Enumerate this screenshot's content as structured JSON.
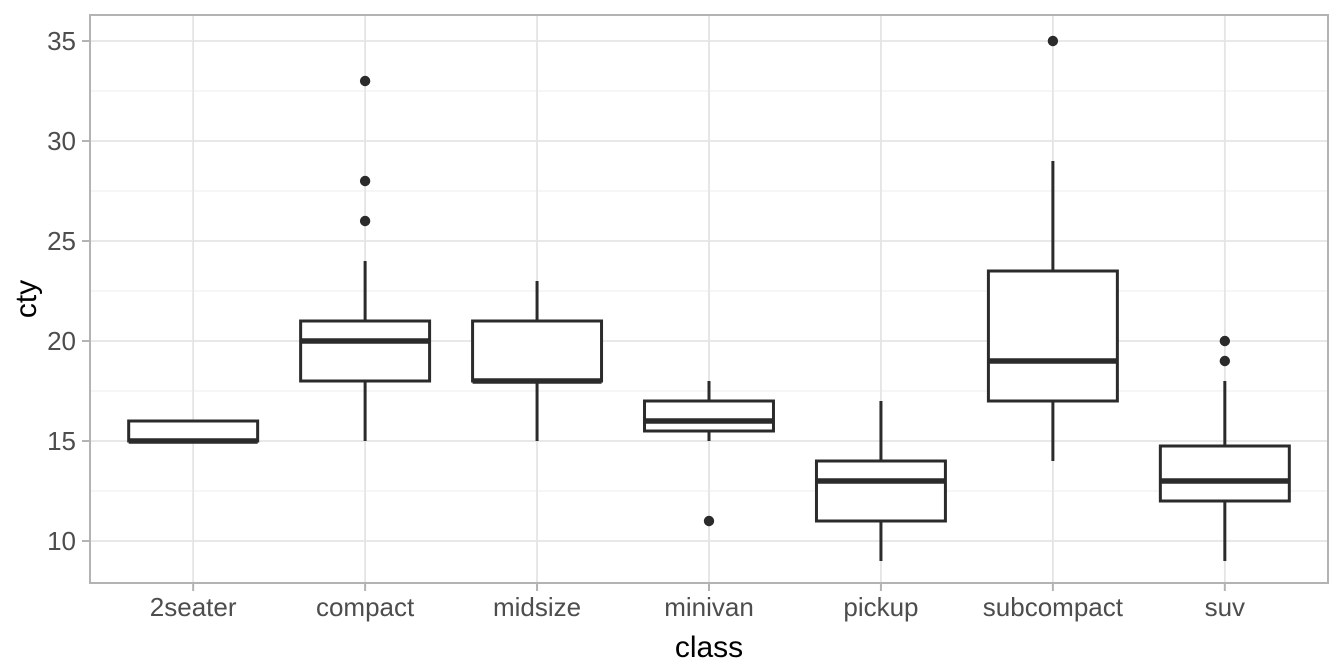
{
  "chart_data": {
    "type": "boxplot",
    "title": "",
    "xlabel": "class",
    "ylabel": "cty",
    "categories": [
      "2seater",
      "compact",
      "midsize",
      "minivan",
      "pickup",
      "subcompact",
      "suv"
    ],
    "boxes": [
      {
        "category": "2seater",
        "whisker_low": 15,
        "q1": 15,
        "median": 15,
        "q3": 16,
        "whisker_high": 16,
        "outliers": []
      },
      {
        "category": "compact",
        "whisker_low": 15,
        "q1": 18,
        "median": 20,
        "q3": 21,
        "whisker_high": 24,
        "outliers": [
          26,
          28,
          33
        ]
      },
      {
        "category": "midsize",
        "whisker_low": 15,
        "q1": 18,
        "median": 18,
        "q3": 21,
        "whisker_high": 23,
        "outliers": []
      },
      {
        "category": "minivan",
        "whisker_low": 15,
        "q1": 15.5,
        "median": 16,
        "q3": 17,
        "whisker_high": 18,
        "outliers": [
          11
        ]
      },
      {
        "category": "pickup",
        "whisker_low": 9,
        "q1": 11,
        "median": 13,
        "q3": 14,
        "whisker_high": 17,
        "outliers": []
      },
      {
        "category": "subcompact",
        "whisker_low": 14,
        "q1": 17,
        "median": 19,
        "q3": 23.5,
        "whisker_high": 29,
        "outliers": [
          35
        ]
      },
      {
        "category": "suv",
        "whisker_low": 9,
        "q1": 12,
        "median": 13,
        "q3": 14.75,
        "whisker_high": 18,
        "outliers": [
          19,
          20
        ]
      }
    ],
    "y_axis": {
      "tick_labels": [
        "10",
        "15",
        "20",
        "25",
        "30",
        "35"
      ],
      "ticks": [
        10,
        15,
        20,
        25,
        30,
        35
      ],
      "minor_ticks": [
        12.5,
        17.5,
        22.5,
        27.5,
        32.5
      ],
      "range": [
        7.9,
        36.3
      ]
    },
    "x_axis": {
      "tick_labels": [
        "2seater",
        "compact",
        "midsize",
        "minivan",
        "pickup",
        "subcompact",
        "suv"
      ]
    },
    "legend": "none",
    "grid": "on",
    "colors": {
      "box_stroke": "#2b2b2b",
      "box_fill": "#ffffff",
      "outlier": "#2b2b2b",
      "grid_major": "#e4e4e4",
      "grid_minor": "#f1f1f1",
      "panel_border": "#b3b3b3",
      "tick_mark": "#b3b3b3",
      "tick_label": "#4d4d4d",
      "axis_title": "#000000",
      "panel_background": "#ffffff",
      "plot_background": "#ffffff"
    }
  }
}
